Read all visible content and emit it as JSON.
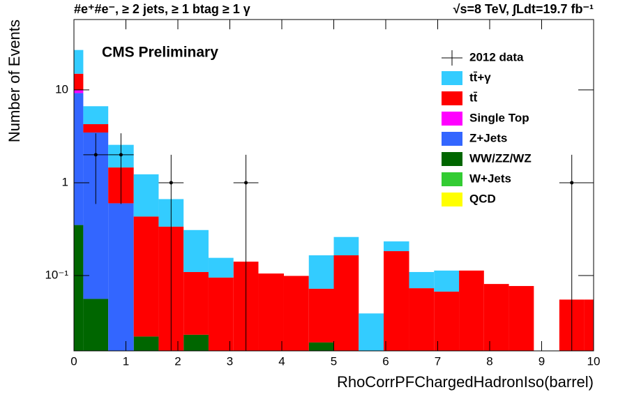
{
  "chart_data": {
    "type": "histogram",
    "title": "CMS Preliminary",
    "header_left": "#e⁺#e⁻, ≥ 2 jets, ≥ 1 btag ≥ 1 γ",
    "header_right": "√s=8 TeV,  ∫Ldt=19.7 fb⁻¹",
    "xlabel": "RhoCorrPFChargedHadronIso(barrel)",
    "ylabel": "Number of Events",
    "log_y": true,
    "xlim": [
      0,
      10
    ],
    "ylim": [
      0.0154,
      57.4
    ],
    "xticks": [
      0,
      1,
      2,
      3,
      4,
      5,
      6,
      7,
      8,
      9,
      10
    ],
    "yticks": [
      {
        "value": 0.1,
        "label": "10⁻¹"
      },
      1,
      10
    ],
    "bins": [
      -0.3,
      0.18,
      0.66,
      1.15,
      1.63,
      2.11,
      2.59,
      3.07,
      3.55,
      4.04,
      4.52,
      5.0,
      5.48,
      5.96,
      6.45,
      6.93,
      7.41,
      7.89,
      8.37,
      8.85,
      9.34,
      9.82,
      10.3
    ],
    "data": {
      "name": "2012 data",
      "values": [
        null,
        2,
        2,
        null,
        1,
        null,
        null,
        1,
        null,
        null,
        null,
        null,
        null,
        null,
        null,
        null,
        null,
        null,
        null,
        null,
        1,
        null
      ],
      "errors": [
        null,
        1.41,
        1.41,
        null,
        1,
        null,
        null,
        1,
        null,
        null,
        null,
        null,
        null,
        null,
        null,
        null,
        null,
        null,
        null,
        null,
        1,
        null
      ]
    },
    "series": [
      {
        "name": "tt̄+γ",
        "color": "#33ccff",
        "values": [
          12,
          2.4,
          1.1,
          0.8,
          0.33,
          0.2,
          0.06,
          0,
          0,
          0,
          0.093,
          0.095,
          0.039,
          0.05,
          0.036,
          0.046,
          0,
          0,
          0,
          0,
          0,
          0
        ]
      },
      {
        "name": "tt̄",
        "color": "#ff0000",
        "values": [
          5,
          0.8,
          0.86,
          0.41,
          0.336,
          0.086,
          0.095,
          0.141,
          0.105,
          0.099,
          0.053,
          0.165,
          0,
          0.183,
          0.073,
          0.067,
          0.113,
          0.081,
          0.077,
          0,
          0.055,
          0.055
        ]
      },
      {
        "name": "Single Top",
        "color": "#ff00ff",
        "values": [
          0.7,
          0,
          0,
          0,
          0,
          0,
          0,
          0,
          0,
          0,
          0,
          0,
          0,
          0,
          0,
          0,
          0,
          0,
          0,
          0,
          0,
          0
        ]
      },
      {
        "name": "Z+Jets",
        "color": "#3366ff",
        "values": [
          8.9,
          3.42,
          0.6,
          0,
          0,
          0,
          0,
          0,
          0,
          0,
          0,
          0,
          0,
          0,
          0,
          0,
          0,
          0,
          0,
          0,
          0,
          0
        ]
      },
      {
        "name": "WW/ZZ/WZ",
        "color": "#006600",
        "values": [
          0.35,
          0.056,
          0,
          0.022,
          0,
          0.023,
          0,
          0,
          0,
          0,
          0.019,
          0,
          0,
          0,
          0,
          0,
          0,
          0,
          0,
          0,
          0,
          0
        ]
      },
      {
        "name": "W+Jets",
        "color": "#33cc33",
        "values": [
          0,
          0,
          0,
          0,
          0,
          0,
          0,
          0,
          0,
          0,
          0,
          0,
          0,
          0,
          0,
          0,
          0,
          0,
          0,
          0,
          0,
          0
        ]
      },
      {
        "name": "QCD",
        "color": "#ffff00",
        "values": [
          0,
          0,
          0,
          0,
          0,
          0,
          0,
          0,
          0,
          0,
          0,
          0,
          0,
          0,
          0,
          0,
          0,
          0,
          0,
          0,
          0,
          0
        ]
      }
    ]
  }
}
